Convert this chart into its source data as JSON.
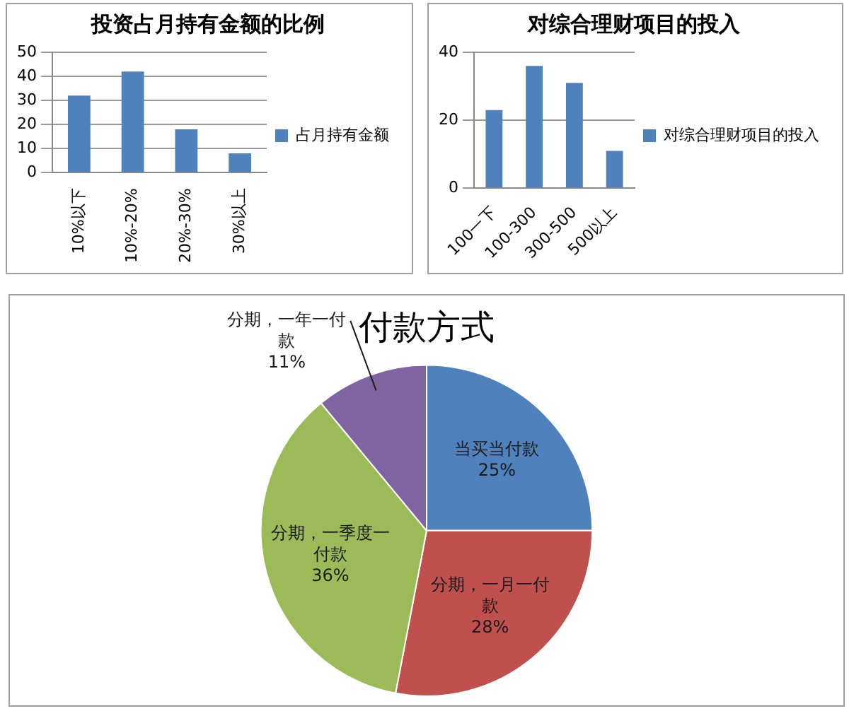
{
  "chart_data": [
    {
      "type": "bar",
      "title": "投资占月持有金额的比例",
      "categories": [
        "10%以下",
        "10%-20%",
        "20%-30%",
        "30%以上"
      ],
      "series": [
        {
          "name": "占月持有金额",
          "color": "#4f81bd",
          "values": [
            32,
            42,
            18,
            8
          ]
        }
      ],
      "ylim": [
        0,
        50
      ],
      "yticks": [
        0,
        10,
        20,
        30,
        40,
        50
      ],
      "grid": "y",
      "legend": "right"
    },
    {
      "type": "bar",
      "title": "对综合理财项目的投入",
      "categories": [
        "100一下",
        "100-300",
        "300-500",
        "500以上"
      ],
      "series": [
        {
          "name": "对综合理财项目的投入",
          "color": "#4f81bd",
          "values": [
            23,
            36,
            31,
            11
          ]
        }
      ],
      "ylim": [
        0,
        40
      ],
      "yticks": [
        0,
        20,
        40
      ],
      "grid": "y",
      "legend": "right"
    },
    {
      "type": "pie",
      "title": "付款方式",
      "categories": [
        "当买当付款",
        "分期，一月一付款",
        "分期，一季度一付款",
        "分期，一年一付款"
      ],
      "values": [
        25,
        28,
        36,
        11
      ],
      "colors": [
        "#4f81bd",
        "#c0504d",
        "#9bbb59",
        "#8064a2"
      ],
      "value_labels": [
        "25%",
        "28%",
        "36%",
        "11%"
      ]
    }
  ]
}
